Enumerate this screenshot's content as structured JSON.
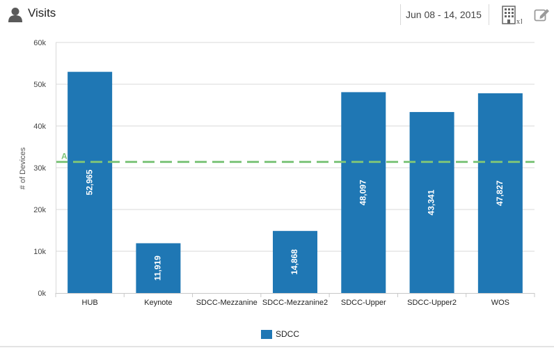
{
  "header": {
    "title": "Visits",
    "date_range": "Jun 08 - 14, 2015",
    "building_badge": "x1",
    "icons": {
      "user": "user-icon",
      "building": "building-icon",
      "edit": "edit-icon"
    }
  },
  "chart_data": {
    "type": "bar",
    "categories": [
      "HUB",
      "Keynote",
      "SDCC-Mezzanine",
      "SDCC-Mezzanine2",
      "SDCC-Upper",
      "SDCC-Upper2",
      "WOS"
    ],
    "series": [
      {
        "name": "SDCC",
        "values": [
          52965,
          11919,
          null,
          14868,
          48097,
          43341,
          47827
        ],
        "labels": [
          "52,965",
          "11,919",
          "",
          "14,868",
          "48,097",
          "43,341",
          "47,827"
        ],
        "color": "#1f77b4"
      }
    ],
    "ylabel": "# of Devices",
    "ylim": [
      0,
      60000
    ],
    "yticks": [
      0,
      10000,
      20000,
      30000,
      40000,
      50000,
      60000
    ],
    "ytick_labels": [
      "0k",
      "10k",
      "20k",
      "30k",
      "40k",
      "50k",
      "60k"
    ],
    "average_line": {
      "value": 31400,
      "label": "A",
      "color": "#7dc47a"
    },
    "grid": true,
    "legend_position": "bottom-center"
  }
}
